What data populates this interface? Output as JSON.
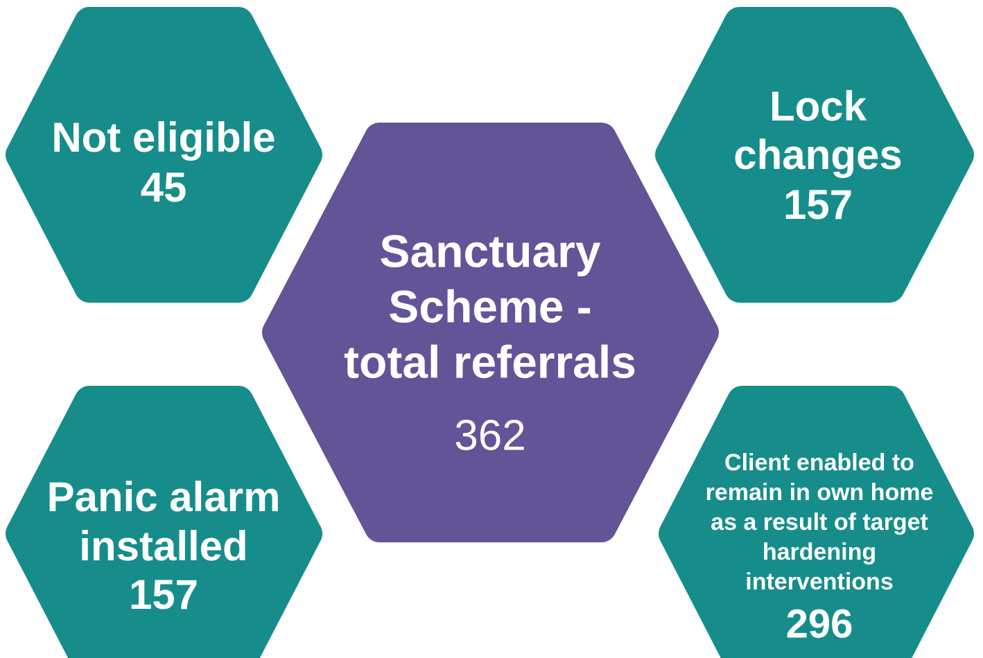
{
  "nodes": [
    {
      "label_lines": [
        "Sanctuary",
        "Scheme -",
        "total referrals"
      ],
      "value": "362"
    },
    {
      "label_lines": [
        "Not eligible"
      ],
      "value": "45"
    },
    {
      "label_lines": [
        "Lock",
        "changes"
      ],
      "value": "157"
    },
    {
      "label_lines": [
        "Panic alarm",
        "installed"
      ],
      "value": "157"
    },
    {
      "label_lines": [
        "Client enabled to",
        "remain in own home",
        "as a result of target",
        "hardening",
        "interventions"
      ],
      "value": "296"
    }
  ]
}
